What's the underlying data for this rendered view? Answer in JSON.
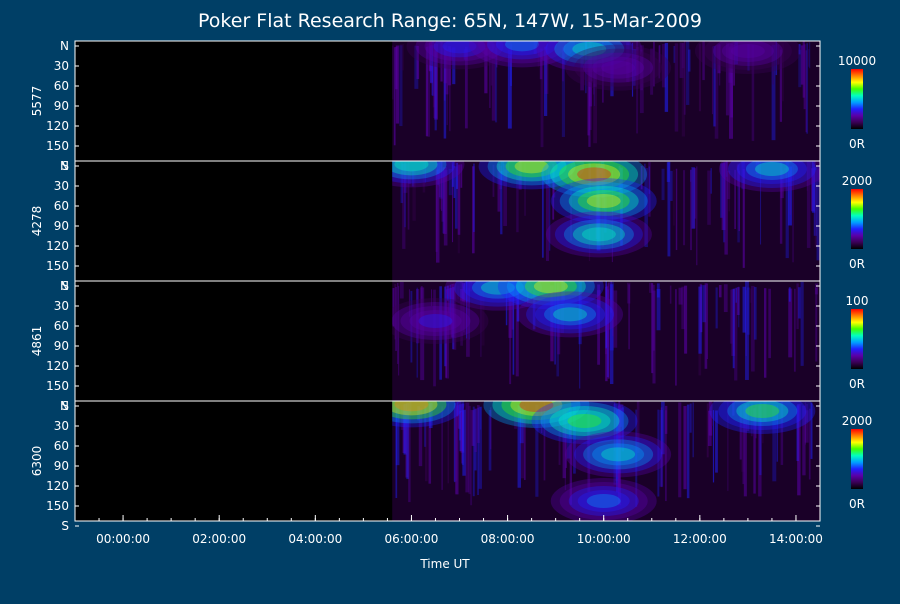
{
  "chart_data": {
    "type": "heatmap",
    "title": "Poker Flat Research Range: 65N, 147W, 15-Mar-2009",
    "xlabel": "Time UT",
    "x_ticks": [
      "00:00:00",
      "02:00:00",
      "04:00:00",
      "06:00:00",
      "08:00:00",
      "10:00:00",
      "12:00:00",
      "14:00:00"
    ],
    "y_ticks": [
      "N",
      "30",
      "60",
      "90",
      "120",
      "150",
      "S"
    ],
    "x_range_hours": [
      -1.0,
      14.5
    ],
    "data_start_hours": 5.6,
    "colormap": [
      "#000000",
      "#3a0055",
      "#5a00a8",
      "#2020ff",
      "#00a0ff",
      "#00ffc0",
      "#40ff00",
      "#ffff00",
      "#ff8000",
      "#ff0000"
    ],
    "panels": [
      {
        "ylabel": "5577",
        "colorbar_max": "10000",
        "colorbar_min": "0R",
        "features": [
          {
            "t": 7.0,
            "lat": 8,
            "intensity": 0.35
          },
          {
            "t": 8.3,
            "lat": 5,
            "intensity": 0.45
          },
          {
            "t": 9.7,
            "lat": 12,
            "intensity": 0.55
          },
          {
            "t": 10.3,
            "lat": 40,
            "intensity": 0.25
          },
          {
            "t": 13.0,
            "lat": 15,
            "intensity": 0.25
          }
        ]
      },
      {
        "ylabel": "4278",
        "colorbar_max": "2000",
        "colorbar_min": "0R",
        "features": [
          {
            "t": 6.0,
            "lat": 5,
            "intensity": 0.6
          },
          {
            "t": 8.5,
            "lat": 8,
            "intensity": 0.75
          },
          {
            "t": 9.8,
            "lat": 20,
            "intensity": 0.95
          },
          {
            "t": 10.0,
            "lat": 60,
            "intensity": 0.75
          },
          {
            "t": 9.9,
            "lat": 110,
            "intensity": 0.6
          },
          {
            "t": 13.5,
            "lat": 12,
            "intensity": 0.5
          }
        ]
      },
      {
        "ylabel": "4861",
        "colorbar_max": "100",
        "colorbar_min": "0R",
        "features": [
          {
            "t": 7.8,
            "lat": 10,
            "intensity": 0.5
          },
          {
            "t": 8.9,
            "lat": 8,
            "intensity": 0.75
          },
          {
            "t": 9.3,
            "lat": 50,
            "intensity": 0.5
          },
          {
            "t": 6.5,
            "lat": 60,
            "intensity": 0.3
          }
        ]
      },
      {
        "ylabel": "6300",
        "colorbar_max": "2000",
        "colorbar_min": "0R",
        "features": [
          {
            "t": 6.0,
            "lat": 5,
            "intensity": 0.85
          },
          {
            "t": 8.6,
            "lat": 6,
            "intensity": 0.95
          },
          {
            "t": 9.6,
            "lat": 30,
            "intensity": 0.7
          },
          {
            "t": 10.3,
            "lat": 80,
            "intensity": 0.55
          },
          {
            "t": 13.3,
            "lat": 15,
            "intensity": 0.65
          },
          {
            "t": 10.0,
            "lat": 150,
            "intensity": 0.45
          }
        ]
      }
    ]
  }
}
